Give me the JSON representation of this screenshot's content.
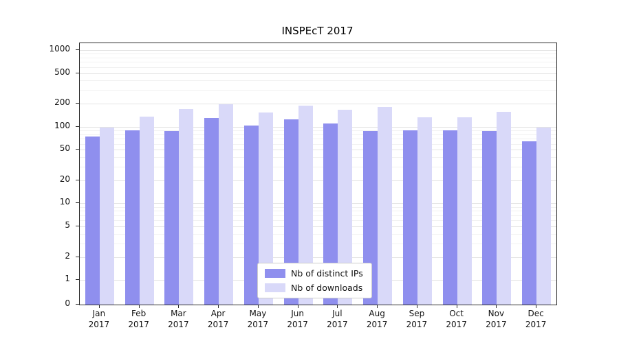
{
  "title": "INSPEcT 2017",
  "chart_data": {
    "type": "bar",
    "title": "INSPEcT 2017",
    "yscale": "symlog",
    "grid": "horizontal",
    "yticks": [
      0,
      1,
      2,
      5,
      10,
      20,
      50,
      100,
      200,
      500,
      1000
    ],
    "ylim": [
      0,
      1230
    ],
    "categories": [
      "Jan 2017",
      "Feb 2017",
      "Mar 2017",
      "Apr 2017",
      "May 2017",
      "Jun 2017",
      "Jul 2017",
      "Aug 2017",
      "Sep 2017",
      "Oct 2017",
      "Nov 2017",
      "Dec 2017"
    ],
    "series": [
      {
        "name": "Nb of distinct IPs",
        "color": "#8f8fee",
        "values": [
          75,
          90,
          88,
          130,
          103,
          125,
          110,
          88,
          90,
          89,
          87,
          65
        ]
      },
      {
        "name": "Nb of downloads",
        "color": "#d9d9f9",
        "values": [
          97,
          135,
          170,
          197,
          152,
          188,
          165,
          180,
          132,
          133,
          155,
          98
        ]
      }
    ],
    "legend_position": "lower center",
    "colors": {
      "axis": "#2a2a2a",
      "grid_major": "#e3e3e3",
      "grid_minor": "#f1f1f1",
      "text": "#111111"
    }
  }
}
